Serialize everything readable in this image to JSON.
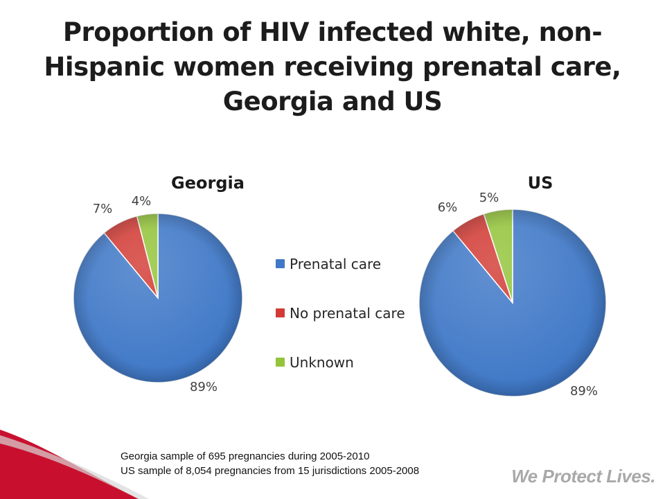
{
  "slide": {
    "title": "Proportion of HIV infected white, non-Hispanic women receiving prenatal care, Georgia and US",
    "notes": [
      "Georgia sample of 695 pregnancies during 2005-2010",
      "US sample of 8,054 pregnancies from 15 jurisdictions 2005-2008"
    ],
    "slogan": "We Protect Lives."
  },
  "colors": {
    "prenatal_care": "#3f78c7",
    "no_prenatal_care": "#d23b35",
    "unknown": "#93c43b",
    "footer_red": "#c8102e"
  },
  "chart_data": [
    {
      "type": "pie",
      "title": "Georgia",
      "categories": [
        "Prenatal care",
        "No prenatal care",
        "Unknown"
      ],
      "values": [
        89,
        7,
        4
      ],
      "labels": [
        "89%",
        "7%",
        "4%"
      ]
    },
    {
      "type": "pie",
      "title": "US",
      "categories": [
        "Prenatal care",
        "No prenatal care",
        "Unknown"
      ],
      "values": [
        89,
        6,
        5
      ],
      "labels": [
        "89%",
        "6%",
        "5%"
      ]
    }
  ],
  "legend": {
    "placement": "center",
    "items": [
      "Prenatal care",
      "No prenatal care",
      "Unknown"
    ]
  }
}
